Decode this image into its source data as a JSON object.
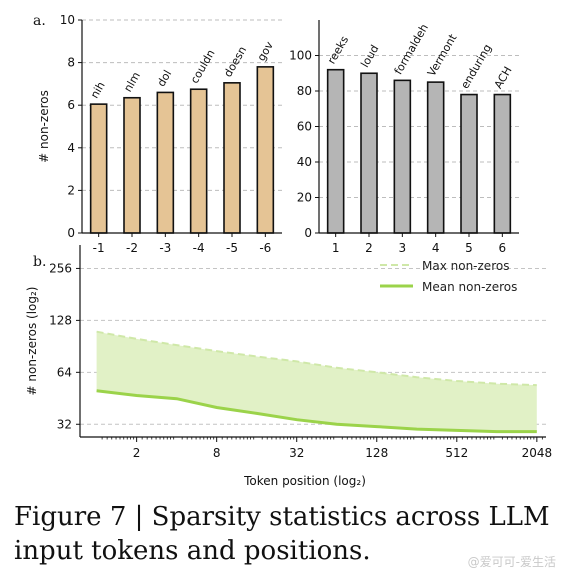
{
  "caption": "Figure 7 | Sparsity statistics across LLM input tokens and positions.",
  "watermark": "@爱可可-爱生活",
  "colors": {
    "tan": "#e5c495",
    "gray": "#b5b5b5",
    "green_line": "#9bd34a",
    "green_fill": "#e1f1c6",
    "green_max": "#cfe8a8"
  },
  "chart_data": [
    {
      "panel": "a.",
      "type": "bar",
      "ylabel": "# non-zeros",
      "categories": [
        "-1",
        "-2",
        "-3",
        "-4",
        "-5",
        "-6"
      ],
      "values": [
        6.05,
        6.35,
        6.6,
        6.75,
        7.05,
        7.8
      ],
      "bar_labels": [
        "nih",
        "nlm",
        "dol",
        "couldn",
        "doesn",
        "gov"
      ],
      "ylim": [
        0,
        10
      ],
      "yticks": [
        0,
        2,
        4,
        6,
        8,
        10
      ],
      "color": "tan",
      "grid": true
    },
    {
      "type": "bar",
      "categories": [
        "1",
        "2",
        "3",
        "4",
        "5",
        "6"
      ],
      "values": [
        92,
        90,
        86,
        85,
        78,
        78
      ],
      "bar_labels": [
        "reeks",
        "loud",
        "formaldeh",
        "Vermont",
        "enduring",
        "ACH"
      ],
      "ylim": [
        0,
        120
      ],
      "yticks": [
        0,
        20,
        40,
        60,
        80,
        100
      ],
      "color": "gray",
      "grid": true
    },
    {
      "panel": "b.",
      "type": "area",
      "xlabel": "Token position (log₂)",
      "ylabel": "# non-zeros (log₂)",
      "xscale": "log2",
      "yscale": "log2",
      "xlim": [
        0.75,
        2400
      ],
      "ylim": [
        27,
        350
      ],
      "xticks": [
        2,
        8,
        32,
        128,
        512,
        2048
      ],
      "yticks": [
        32,
        64,
        128,
        256
      ],
      "legend_position": "top-right",
      "grid": true,
      "series": [
        {
          "name": "Max non-zeros",
          "x": [
            1,
            2,
            4,
            8,
            16,
            32,
            64,
            128,
            256,
            512,
            1024,
            2048
          ],
          "values": [
            110,
            100,
            92,
            85,
            79,
            74,
            68,
            64,
            60,
            57,
            55,
            54
          ]
        },
        {
          "name": "Mean non-zeros",
          "x": [
            1,
            2,
            4,
            8,
            16,
            32,
            64,
            128,
            256,
            512,
            1024,
            2048
          ],
          "values": [
            50,
            47,
            45,
            40,
            37,
            34,
            32,
            31,
            30,
            29.5,
            29,
            29
          ]
        }
      ]
    }
  ]
}
